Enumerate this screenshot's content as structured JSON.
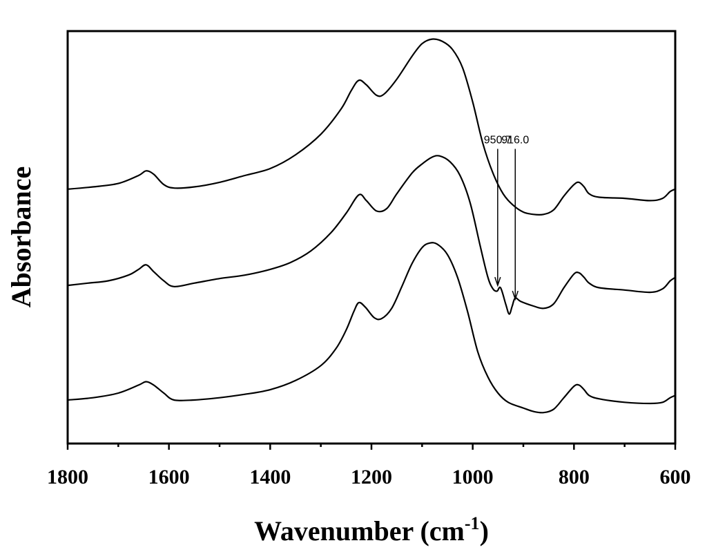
{
  "chart_data": {
    "type": "line",
    "xlabel": "Wavenumber (cm",
    "xlabel_sup": "-1",
    "xlabel_end": ")",
    "ylabel": "Absorbance",
    "xlim": [
      1800,
      600
    ],
    "x_reversed": true,
    "ylim": [
      0,
      3.6
    ],
    "y_ticks_shown": false,
    "grid": false,
    "x_ticks": [
      "1800",
      "1600",
      "1400",
      "1200",
      "1000",
      "800",
      "600"
    ],
    "series": [
      {
        "points": [
          [
            1800,
            2.22
          ],
          [
            1750,
            2.24
          ],
          [
            1700,
            2.27
          ],
          [
            1660,
            2.34
          ],
          [
            1645,
            2.38
          ],
          [
            1630,
            2.35
          ],
          [
            1610,
            2.26
          ],
          [
            1590,
            2.23
          ],
          [
            1550,
            2.24
          ],
          [
            1500,
            2.28
          ],
          [
            1450,
            2.34
          ],
          [
            1400,
            2.4
          ],
          [
            1350,
            2.52
          ],
          [
            1300,
            2.7
          ],
          [
            1260,
            2.92
          ],
          [
            1240,
            3.08
          ],
          [
            1225,
            3.17
          ],
          [
            1210,
            3.13
          ],
          [
            1190,
            3.04
          ],
          [
            1175,
            3.05
          ],
          [
            1150,
            3.18
          ],
          [
            1120,
            3.38
          ],
          [
            1100,
            3.49
          ],
          [
            1080,
            3.53
          ],
          [
            1060,
            3.51
          ],
          [
            1040,
            3.44
          ],
          [
            1020,
            3.28
          ],
          [
            1000,
            2.98
          ],
          [
            980,
            2.62
          ],
          [
            960,
            2.36
          ],
          [
            940,
            2.18
          ],
          [
            920,
            2.08
          ],
          [
            900,
            2.02
          ],
          [
            880,
            2.0
          ],
          [
            860,
            2.0
          ],
          [
            840,
            2.04
          ],
          [
            820,
            2.16
          ],
          [
            800,
            2.26
          ],
          [
            790,
            2.28
          ],
          [
            780,
            2.24
          ],
          [
            770,
            2.18
          ],
          [
            750,
            2.15
          ],
          [
            700,
            2.14
          ],
          [
            650,
            2.12
          ],
          [
            625,
            2.14
          ],
          [
            610,
            2.2
          ],
          [
            600,
            2.22
          ]
        ]
      },
      {
        "points": [
          [
            1800,
            1.38
          ],
          [
            1760,
            1.4
          ],
          [
            1720,
            1.42
          ],
          [
            1680,
            1.47
          ],
          [
            1660,
            1.52
          ],
          [
            1645,
            1.56
          ],
          [
            1630,
            1.5
          ],
          [
            1610,
            1.42
          ],
          [
            1590,
            1.37
          ],
          [
            1550,
            1.4
          ],
          [
            1500,
            1.44
          ],
          [
            1450,
            1.47
          ],
          [
            1400,
            1.52
          ],
          [
            1360,
            1.58
          ],
          [
            1320,
            1.68
          ],
          [
            1280,
            1.84
          ],
          [
            1250,
            2.01
          ],
          [
            1225,
            2.17
          ],
          [
            1210,
            2.12
          ],
          [
            1190,
            2.03
          ],
          [
            1170,
            2.05
          ],
          [
            1150,
            2.18
          ],
          [
            1120,
            2.36
          ],
          [
            1100,
            2.44
          ],
          [
            1080,
            2.5
          ],
          [
            1065,
            2.51
          ],
          [
            1045,
            2.46
          ],
          [
            1025,
            2.34
          ],
          [
            1005,
            2.1
          ],
          [
            985,
            1.72
          ],
          [
            970,
            1.45
          ],
          [
            960,
            1.35
          ],
          [
            952,
            1.33
          ],
          [
            945,
            1.36
          ],
          [
            935,
            1.22
          ],
          [
            928,
            1.13
          ],
          [
            922,
            1.2
          ],
          [
            916,
            1.27
          ],
          [
            905,
            1.24
          ],
          [
            880,
            1.2
          ],
          [
            860,
            1.18
          ],
          [
            840,
            1.22
          ],
          [
            820,
            1.36
          ],
          [
            800,
            1.48
          ],
          [
            790,
            1.49
          ],
          [
            780,
            1.45
          ],
          [
            770,
            1.4
          ],
          [
            750,
            1.36
          ],
          [
            700,
            1.34
          ],
          [
            650,
            1.32
          ],
          [
            625,
            1.35
          ],
          [
            610,
            1.42
          ],
          [
            600,
            1.45
          ]
        ]
      },
      {
        "points": [
          [
            1800,
            0.38
          ],
          [
            1750,
            0.4
          ],
          [
            1700,
            0.44
          ],
          [
            1660,
            0.51
          ],
          [
            1645,
            0.54
          ],
          [
            1630,
            0.51
          ],
          [
            1610,
            0.44
          ],
          [
            1590,
            0.38
          ],
          [
            1550,
            0.38
          ],
          [
            1500,
            0.4
          ],
          [
            1450,
            0.43
          ],
          [
            1400,
            0.47
          ],
          [
            1350,
            0.55
          ],
          [
            1300,
            0.68
          ],
          [
            1270,
            0.83
          ],
          [
            1250,
            0.99
          ],
          [
            1235,
            1.15
          ],
          [
            1225,
            1.23
          ],
          [
            1212,
            1.19
          ],
          [
            1195,
            1.1
          ],
          [
            1180,
            1.09
          ],
          [
            1160,
            1.18
          ],
          [
            1140,
            1.37
          ],
          [
            1120,
            1.57
          ],
          [
            1100,
            1.71
          ],
          [
            1085,
            1.75
          ],
          [
            1070,
            1.74
          ],
          [
            1050,
            1.65
          ],
          [
            1030,
            1.45
          ],
          [
            1010,
            1.15
          ],
          [
            990,
            0.8
          ],
          [
            970,
            0.58
          ],
          [
            950,
            0.44
          ],
          [
            930,
            0.36
          ],
          [
            900,
            0.31
          ],
          [
            880,
            0.28
          ],
          [
            860,
            0.27
          ],
          [
            840,
            0.3
          ],
          [
            820,
            0.4
          ],
          [
            800,
            0.5
          ],
          [
            790,
            0.51
          ],
          [
            780,
            0.47
          ],
          [
            770,
            0.42
          ],
          [
            750,
            0.39
          ],
          [
            700,
            0.36
          ],
          [
            650,
            0.35
          ],
          [
            625,
            0.36
          ],
          [
            610,
            0.4
          ],
          [
            600,
            0.42
          ]
        ]
      }
    ],
    "annotations": [
      {
        "text": "950.7",
        "x": 950.7,
        "y": 1.38
      },
      {
        "text": "916.0",
        "x": 916.0,
        "y": 1.26
      }
    ]
  }
}
